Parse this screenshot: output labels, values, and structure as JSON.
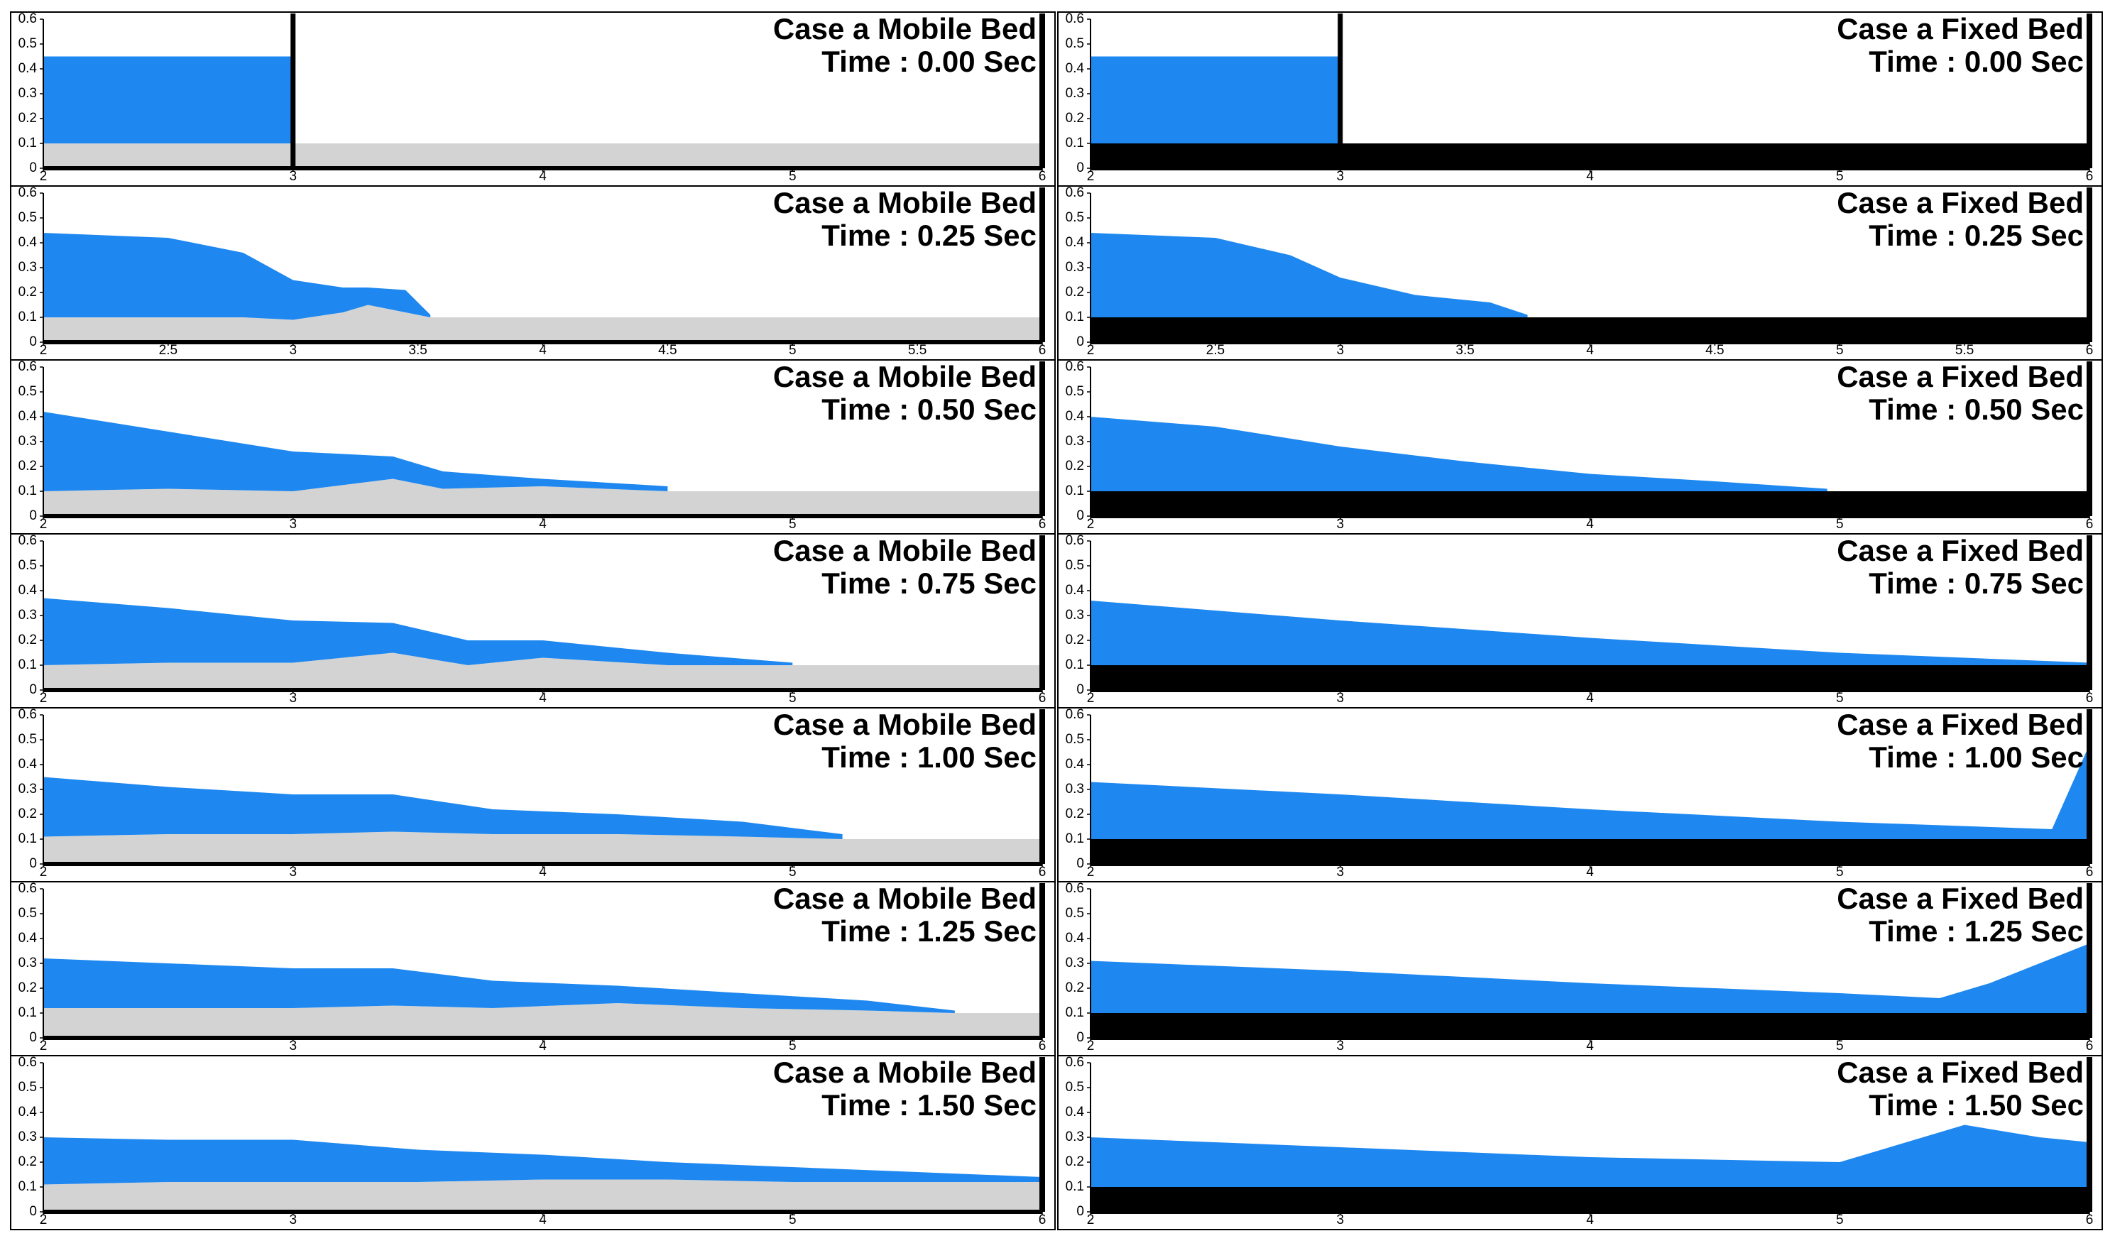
{
  "chart_data": [
    {
      "type": "area",
      "title": "Case a Mobile Bed",
      "subtitle": "Time : 0.00 Sec",
      "xlim": [
        2,
        6
      ],
      "ylim": [
        0,
        0.6
      ],
      "xticks": [
        2,
        3,
        4,
        5,
        6
      ],
      "yticks": [
        0,
        0.1,
        0.2,
        0.3,
        0.4,
        0.5,
        0.6
      ],
      "gate_x": 3,
      "x": [
        2,
        3,
        6
      ],
      "series": [
        {
          "color": "#1e88f0",
          "values": [
            0.45,
            0.45,
            null
          ]
        },
        {
          "color": "#d3d3d3",
          "values": [
            0.1,
            0.1,
            0.1
          ]
        }
      ]
    },
    {
      "type": "area",
      "title": "Case a Fixed Bed",
      "subtitle": "Time : 0.00 Sec",
      "xlim": [
        2,
        6
      ],
      "ylim": [
        0,
        0.6
      ],
      "xticks": [
        2,
        3,
        4,
        5,
        6
      ],
      "yticks": [
        0,
        0.1,
        0.2,
        0.3,
        0.4,
        0.5,
        0.6
      ],
      "gate_x": 3,
      "x": [
        2,
        3,
        6
      ],
      "series": [
        {
          "color": "#1e88f0",
          "values": [
            0.45,
            0.45,
            null
          ]
        },
        {
          "color": "#000000",
          "values": [
            0.1,
            0.1,
            0.1
          ]
        }
      ]
    },
    {
      "type": "area",
      "title": "Case a Mobile Bed",
      "subtitle": "Time : 0.25 Sec",
      "xlim": [
        2,
        6
      ],
      "ylim": [
        0,
        0.6
      ],
      "xticks": [
        2,
        2.5,
        3,
        3.5,
        4,
        4.5,
        5,
        5.5,
        6
      ],
      "yticks": [
        0,
        0.1,
        0.2,
        0.3,
        0.4,
        0.5,
        0.6
      ],
      "x": [
        2,
        2.5,
        2.8,
        3,
        3.2,
        3.3,
        3.45,
        3.55,
        4,
        6
      ],
      "series": [
        {
          "color": "#1e88f0",
          "values": [
            0.44,
            0.42,
            0.36,
            0.25,
            0.22,
            0.22,
            0.21,
            0.11,
            null,
            null
          ]
        },
        {
          "color": "#d3d3d3",
          "values": [
            0.1,
            0.1,
            0.1,
            0.09,
            0.12,
            0.15,
            0.12,
            0.1,
            0.1,
            0.1
          ]
        }
      ]
    },
    {
      "type": "area",
      "title": "Case a Fixed Bed",
      "subtitle": "Time : 0.25 Sec",
      "xlim": [
        2,
        6
      ],
      "ylim": [
        0,
        0.6
      ],
      "xticks": [
        2,
        2.5,
        3,
        3.5,
        4,
        4.5,
        5,
        5.5,
        6
      ],
      "yticks": [
        0,
        0.1,
        0.2,
        0.3,
        0.4,
        0.5,
        0.6
      ],
      "x": [
        2,
        2.5,
        2.8,
        3,
        3.3,
        3.6,
        3.75,
        6
      ],
      "series": [
        {
          "color": "#1e88f0",
          "values": [
            0.44,
            0.42,
            0.35,
            0.26,
            0.19,
            0.16,
            0.11,
            null
          ]
        },
        {
          "color": "#000000",
          "values": [
            0.1,
            0.1,
            0.1,
            0.1,
            0.1,
            0.1,
            0.1,
            0.1
          ]
        }
      ]
    },
    {
      "type": "area",
      "title": "Case a Mobile Bed",
      "subtitle": "Time : 0.50 Sec",
      "xlim": [
        2,
        6
      ],
      "ylim": [
        0,
        0.6
      ],
      "xticks": [
        2,
        3,
        4,
        5,
        6
      ],
      "yticks": [
        0,
        0.1,
        0.2,
        0.3,
        0.4,
        0.5,
        0.6
      ],
      "x": [
        2,
        2.5,
        3,
        3.4,
        3.6,
        4,
        4.5,
        6
      ],
      "series": [
        {
          "color": "#1e88f0",
          "values": [
            0.42,
            0.34,
            0.26,
            0.24,
            0.18,
            0.15,
            0.12,
            null
          ]
        },
        {
          "color": "#d3d3d3",
          "values": [
            0.1,
            0.11,
            0.1,
            0.15,
            0.11,
            0.12,
            0.1,
            0.1
          ]
        }
      ]
    },
    {
      "type": "area",
      "title": "Case a Fixed Bed",
      "subtitle": "Time : 0.50 Sec",
      "xlim": [
        2,
        6
      ],
      "ylim": [
        0,
        0.6
      ],
      "xticks": [
        2,
        3,
        4,
        5,
        6
      ],
      "yticks": [
        0,
        0.1,
        0.2,
        0.3,
        0.4,
        0.5,
        0.6
      ],
      "x": [
        2,
        2.5,
        3,
        3.5,
        4,
        4.5,
        4.95,
        6
      ],
      "series": [
        {
          "color": "#1e88f0",
          "values": [
            0.4,
            0.36,
            0.28,
            0.22,
            0.17,
            0.14,
            0.11,
            null
          ]
        },
        {
          "color": "#000000",
          "values": [
            0.1,
            0.1,
            0.1,
            0.1,
            0.1,
            0.1,
            0.1,
            0.1
          ]
        }
      ]
    },
    {
      "type": "area",
      "title": "Case a Mobile Bed",
      "subtitle": "Time : 0.75 Sec",
      "xlim": [
        2,
        6
      ],
      "ylim": [
        0,
        0.6
      ],
      "xticks": [
        2,
        3,
        4,
        5,
        6
      ],
      "yticks": [
        0,
        0.1,
        0.2,
        0.3,
        0.4,
        0.5,
        0.6
      ],
      "x": [
        2,
        2.5,
        3,
        3.4,
        3.7,
        4,
        4.5,
        5,
        6
      ],
      "series": [
        {
          "color": "#1e88f0",
          "values": [
            0.37,
            0.33,
            0.28,
            0.27,
            0.2,
            0.2,
            0.15,
            0.11,
            null
          ]
        },
        {
          "color": "#d3d3d3",
          "values": [
            0.1,
            0.11,
            0.11,
            0.15,
            0.1,
            0.13,
            0.1,
            0.1,
            0.1
          ]
        }
      ]
    },
    {
      "type": "area",
      "title": "Case a Fixed Bed",
      "subtitle": "Time : 0.75 Sec",
      "xlim": [
        2,
        6
      ],
      "ylim": [
        0,
        0.6
      ],
      "xticks": [
        2,
        3,
        4,
        5,
        6
      ],
      "yticks": [
        0,
        0.1,
        0.2,
        0.3,
        0.4,
        0.5,
        0.6
      ],
      "x": [
        2,
        3,
        4,
        5,
        6
      ],
      "series": [
        {
          "color": "#1e88f0",
          "values": [
            0.36,
            0.28,
            0.21,
            0.15,
            0.11
          ]
        },
        {
          "color": "#000000",
          "values": [
            0.1,
            0.1,
            0.1,
            0.1,
            0.1
          ]
        }
      ]
    },
    {
      "type": "area",
      "title": "Case a Mobile Bed",
      "subtitle": "Time : 1.00 Sec",
      "xlim": [
        2,
        6
      ],
      "ylim": [
        0,
        0.6
      ],
      "xticks": [
        2,
        3,
        4,
        5,
        6
      ],
      "yticks": [
        0,
        0.1,
        0.2,
        0.3,
        0.4,
        0.5,
        0.6
      ],
      "x": [
        2,
        2.5,
        3,
        3.4,
        3.8,
        4.3,
        4.8,
        5.2,
        6
      ],
      "series": [
        {
          "color": "#1e88f0",
          "values": [
            0.35,
            0.31,
            0.28,
            0.28,
            0.22,
            0.2,
            0.17,
            0.12,
            null
          ]
        },
        {
          "color": "#d3d3d3",
          "values": [
            0.11,
            0.12,
            0.12,
            0.13,
            0.12,
            0.12,
            0.11,
            0.1,
            0.1
          ]
        }
      ]
    },
    {
      "type": "area",
      "title": "Case a Fixed Bed",
      "subtitle": "Time : 1.00 Sec",
      "xlim": [
        2,
        6
      ],
      "ylim": [
        0,
        0.6
      ],
      "xticks": [
        2,
        3,
        4,
        5,
        6
      ],
      "yticks": [
        0,
        0.1,
        0.2,
        0.3,
        0.4,
        0.5,
        0.6
      ],
      "x": [
        2,
        3,
        4,
        5,
        5.85,
        6
      ],
      "series": [
        {
          "color": "#1e88f0",
          "values": [
            0.33,
            0.28,
            0.22,
            0.17,
            0.14,
            0.48
          ]
        },
        {
          "color": "#000000",
          "values": [
            0.1,
            0.1,
            0.1,
            0.1,
            0.1,
            0.1
          ]
        }
      ]
    },
    {
      "type": "area",
      "title": "Case a Mobile Bed",
      "subtitle": "Time : 1.25 Sec",
      "xlim": [
        2,
        6
      ],
      "ylim": [
        0,
        0.6
      ],
      "xticks": [
        2,
        3,
        4,
        5,
        6
      ],
      "yticks": [
        0,
        0.1,
        0.2,
        0.3,
        0.4,
        0.5,
        0.6
      ],
      "x": [
        2,
        2.5,
        3,
        3.4,
        3.8,
        4.3,
        4.8,
        5.3,
        5.65,
        6
      ],
      "series": [
        {
          "color": "#1e88f0",
          "values": [
            0.32,
            0.3,
            0.28,
            0.28,
            0.23,
            0.21,
            0.18,
            0.15,
            0.11,
            null
          ]
        },
        {
          "color": "#d3d3d3",
          "values": [
            0.12,
            0.12,
            0.12,
            0.13,
            0.12,
            0.14,
            0.12,
            0.11,
            0.1,
            0.1
          ]
        }
      ]
    },
    {
      "type": "area",
      "title": "Case a Fixed Bed",
      "subtitle": "Time : 1.25 Sec",
      "xlim": [
        2,
        6
      ],
      "ylim": [
        0,
        0.6
      ],
      "xticks": [
        2,
        3,
        4,
        5,
        6
      ],
      "yticks": [
        0,
        0.1,
        0.2,
        0.3,
        0.4,
        0.5,
        0.6
      ],
      "x": [
        2,
        3,
        4,
        5,
        5.4,
        5.6,
        6
      ],
      "series": [
        {
          "color": "#1e88f0",
          "values": [
            0.31,
            0.27,
            0.22,
            0.18,
            0.16,
            0.22,
            0.38
          ]
        },
        {
          "color": "#000000",
          "values": [
            0.1,
            0.1,
            0.1,
            0.1,
            0.1,
            0.1,
            0.1
          ]
        }
      ]
    },
    {
      "type": "area",
      "title": "Case a Mobile Bed",
      "subtitle": "Time : 1.50 Sec",
      "xlim": [
        2,
        6
      ],
      "ylim": [
        0,
        0.6
      ],
      "xticks": [
        2,
        3,
        4,
        5,
        6
      ],
      "yticks": [
        0,
        0.1,
        0.2,
        0.3,
        0.4,
        0.5,
        0.6
      ],
      "x": [
        2,
        2.5,
        3,
        3.5,
        4,
        4.5,
        5,
        5.5,
        6
      ],
      "series": [
        {
          "color": "#1e88f0",
          "values": [
            0.3,
            0.29,
            0.29,
            0.25,
            0.23,
            0.2,
            0.18,
            0.16,
            0.14
          ]
        },
        {
          "color": "#d3d3d3",
          "values": [
            0.11,
            0.12,
            0.12,
            0.12,
            0.13,
            0.13,
            0.12,
            0.12,
            0.12
          ]
        }
      ]
    },
    {
      "type": "area",
      "title": "Case a Fixed Bed",
      "subtitle": "Time : 1.50 Sec",
      "xlim": [
        2,
        6
      ],
      "ylim": [
        0,
        0.6
      ],
      "xticks": [
        2,
        3,
        4,
        5,
        6
      ],
      "yticks": [
        0,
        0.1,
        0.2,
        0.3,
        0.4,
        0.5,
        0.6
      ],
      "x": [
        2,
        3,
        4,
        5,
        5.5,
        5.8,
        6
      ],
      "series": [
        {
          "color": "#1e88f0",
          "values": [
            0.3,
            0.26,
            0.22,
            0.2,
            0.35,
            0.3,
            0.28
          ]
        },
        {
          "color": "#000000",
          "values": [
            0.1,
            0.1,
            0.1,
            0.1,
            0.1,
            0.1,
            0.1
          ]
        }
      ]
    }
  ]
}
